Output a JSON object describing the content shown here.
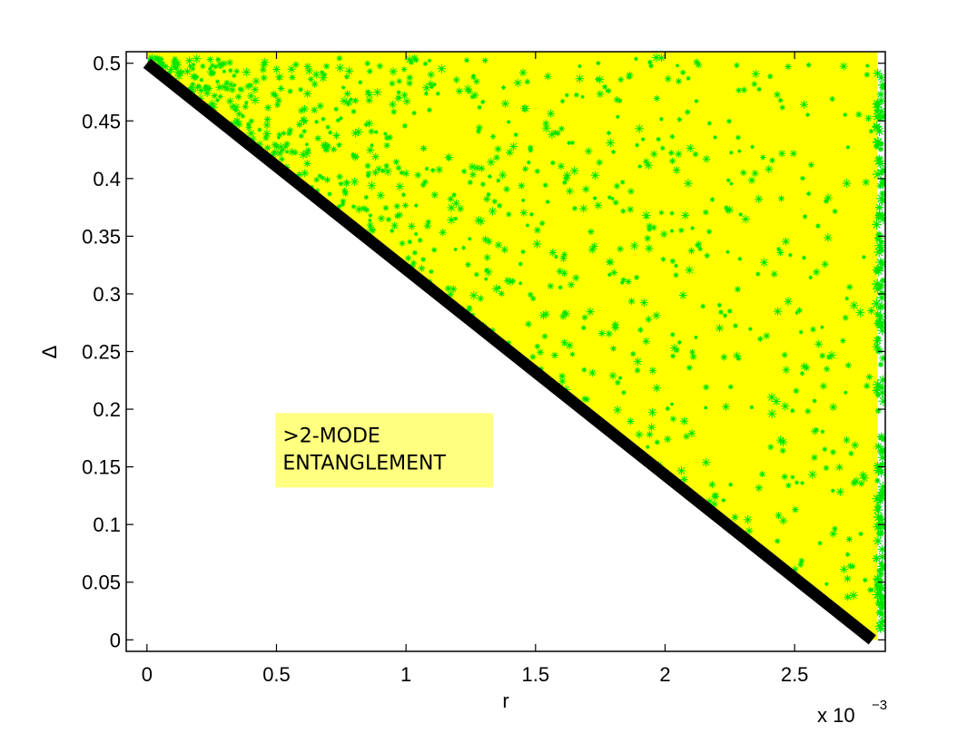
{
  "chart_data": {
    "type": "scatter",
    "title": "",
    "xlabel": "r",
    "ylabel": "Δ",
    "x_multiplier_label": "x 10",
    "x_multiplier_exponent": "−3",
    "xlim": [
      -8e-05,
      0.00285
    ],
    "ylim": [
      -0.01,
      0.51
    ],
    "x_ticks": [
      {
        "value": 0.0,
        "label": "0"
      },
      {
        "value": 0.0005,
        "label": "0.5"
      },
      {
        "value": 0.001,
        "label": "1"
      },
      {
        "value": 0.0015,
        "label": "1.5"
      },
      {
        "value": 0.002,
        "label": "2"
      },
      {
        "value": 0.0025,
        "label": "2.5"
      }
    ],
    "y_ticks": [
      {
        "value": 0.0,
        "label": "0"
      },
      {
        "value": 0.05,
        "label": "0.05"
      },
      {
        "value": 0.1,
        "label": "0.1"
      },
      {
        "value": 0.15,
        "label": "0.15"
      },
      {
        "value": 0.2,
        "label": "0.2"
      },
      {
        "value": 0.25,
        "label": "0.25"
      },
      {
        "value": 0.3,
        "label": "0.3"
      },
      {
        "value": 0.35,
        "label": "0.35"
      },
      {
        "value": 0.4,
        "label": "0.4"
      },
      {
        "value": 0.45,
        "label": "0.45"
      },
      {
        "value": 0.5,
        "label": "0.5"
      }
    ],
    "grid": false,
    "legend": "none",
    "boundary_line": {
      "x": [
        0.0,
        0.0028
      ],
      "y": [
        0.5,
        0.0
      ],
      "color": "#000000"
    },
    "series": [
      {
        "type": "scatter-region",
        "color": "#ffff00",
        "region_x": [
          0.0,
          0.0028
        ],
        "region_y_max": 0.51,
        "description_of_density": "dense"
      },
      {
        "type": "scatter-points",
        "color": "#00e600",
        "vertical_band_x": 0.00283,
        "point_count": 900
      }
    ],
    "annotations": [
      {
        "lines": [
          ">2-MODE",
          "ENTANGLEMENT"
        ],
        "x": 0.00051,
        "y": 0.195,
        "background": "#ffff80"
      }
    ]
  }
}
